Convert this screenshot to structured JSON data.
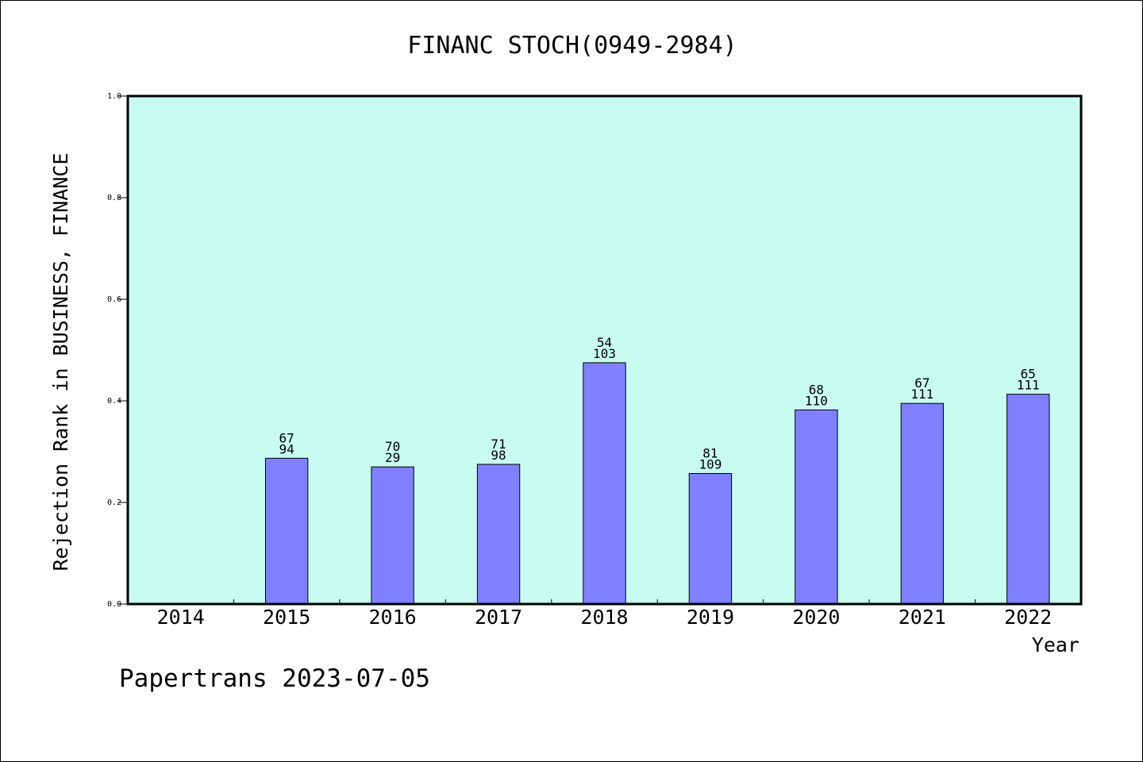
{
  "chart_data": {
    "type": "bar",
    "title": "FINANC STOCH(0949-2984)",
    "xlabel": "Year",
    "ylabel": "Rejection Rank in BUSINESS, FINANCE",
    "ylim": [
      0.0,
      1.0
    ],
    "yticks": [
      "0.0",
      "0.2",
      "0.4",
      "0.6",
      "0.8",
      "1.0"
    ],
    "categories": [
      "2014",
      "2015",
      "2016",
      "2017",
      "2018",
      "2019",
      "2020",
      "2021",
      "2022"
    ],
    "values": [
      null,
      0.287,
      0.27,
      0.275,
      0.475,
      0.257,
      0.382,
      0.395,
      0.413
    ],
    "label_top": [
      "",
      "67",
      "70",
      "71",
      "54",
      "81",
      "68",
      "67",
      "65"
    ],
    "label_bottom": [
      "",
      "94",
      "29",
      "98",
      "103",
      "109",
      "110",
      "111",
      "111"
    ],
    "grid": false,
    "colors": {
      "plot_background": "#c8fcf0",
      "bar_fill": "#8080ff",
      "bar_stroke": "#000000"
    }
  },
  "footer": "Papertrans 2023-07-05"
}
